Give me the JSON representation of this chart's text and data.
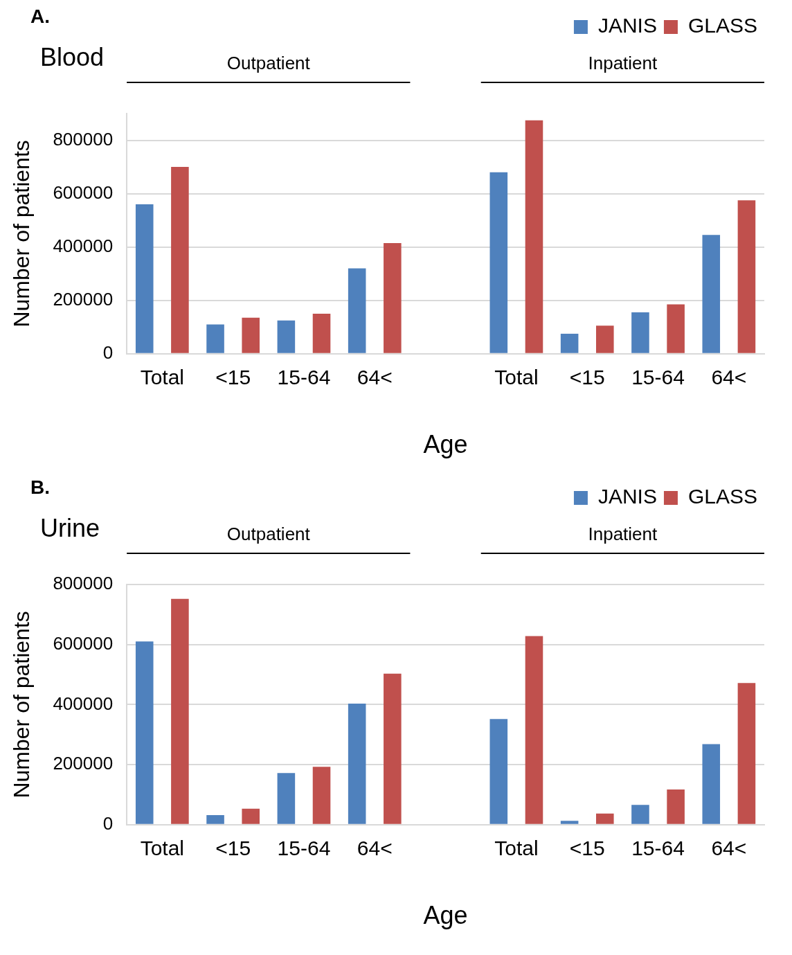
{
  "chart_data": [
    {
      "type": "bar",
      "title": "A.",
      "subtitle": "Blood",
      "xlabel": "Age",
      "ylabel": "Number of patients",
      "categories": [
        "Total",
        "<15",
        "15-64",
        "64<",
        null,
        "Total",
        "<15",
        "15-64",
        "64<"
      ],
      "series": [
        {
          "name": "JANIS",
          "color": "#4f81bd",
          "values": [
            560000,
            110000,
            125000,
            320000,
            null,
            680000,
            75000,
            155000,
            445000
          ]
        },
        {
          "name": "GLASS",
          "color": "#c0504d",
          "values": [
            700000,
            135000,
            150000,
            415000,
            null,
            875000,
            105000,
            185000,
            575000
          ]
        }
      ],
      "ylim": [
        0,
        900000
      ],
      "yticks": [
        0,
        200000,
        400000,
        600000,
        800000
      ],
      "grid": "y",
      "legend": "top right",
      "annotations": [
        "Outpatient",
        "Inpatient"
      ]
    },
    {
      "type": "bar",
      "title": "B.",
      "subtitle": "Urine",
      "xlabel": "Age",
      "ylabel": "Number of patients",
      "categories": [
        "Total",
        "<15",
        "15-64",
        "64<",
        null,
        "Total",
        "<15",
        "15-64",
        "64<"
      ],
      "series": [
        {
          "name": "JANIS",
          "color": "#4f81bd",
          "values": [
            610000,
            32000,
            172000,
            403000,
            null,
            352000,
            13000,
            66000,
            268000
          ]
        },
        {
          "name": "GLASS",
          "color": "#c0504d",
          "values": [
            752000,
            53000,
            193000,
            503000,
            null,
            628000,
            37000,
            117000,
            472000
          ]
        }
      ],
      "ylim": [
        0,
        800000
      ],
      "yticks": [
        0,
        200000,
        400000,
        600000,
        800000
      ],
      "grid": "y",
      "legend": "top right",
      "annotations": [
        "Outpatient",
        "Inpatient"
      ]
    }
  ]
}
